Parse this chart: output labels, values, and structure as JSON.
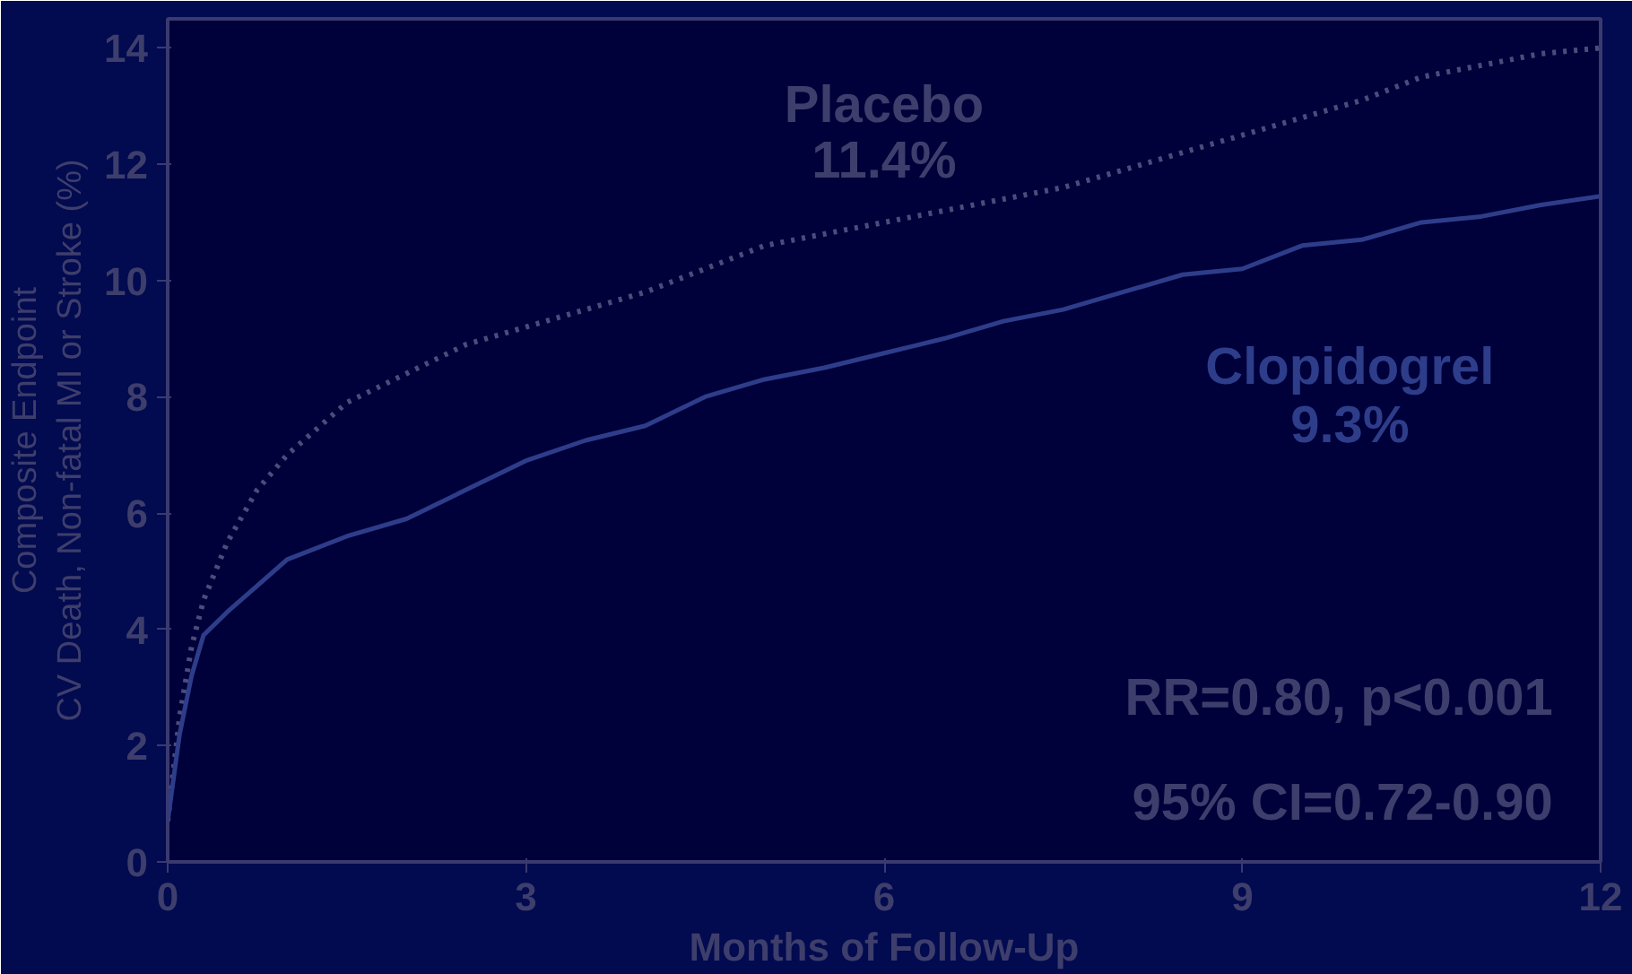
{
  "chart_data": {
    "type": "line",
    "xlabel": "Months of Follow-Up",
    "ylabel": "Composite Endpoint\nCV Death, Non-fatal MI or Stroke (%)",
    "xlim": [
      0,
      12
    ],
    "xticks": [
      0,
      3,
      6,
      9,
      12
    ],
    "ylim": [
      0,
      14.5
    ],
    "yticks": [
      0,
      2,
      4,
      6,
      8,
      10,
      12,
      14
    ],
    "grid": false,
    "annotations": [
      "11.4%",
      "9.3%",
      "RR=0.80, p<0.001",
      "95% CI=0.72-0.90"
    ],
    "x": [
      0,
      0.1,
      0.2,
      0.3,
      0.5,
      0.75,
      1,
      1.5,
      2,
      2.5,
      3,
      3.5,
      4,
      4.5,
      5,
      5.5,
      6,
      6.5,
      7,
      7.5,
      8,
      8.5,
      9,
      9.5,
      10,
      10.5,
      11,
      11.5,
      12
    ],
    "series": [
      {
        "name": "Placebo",
        "color": "#4c4c7c",
        "line_style": "dotted",
        "values": [
          0.7,
          2.5,
          3.7,
          4.5,
          5.5,
          6.4,
          7.0,
          7.9,
          8.4,
          8.9,
          9.2,
          9.5,
          9.8,
          10.2,
          10.6,
          10.8,
          11.0,
          11.2,
          11.4,
          11.6,
          11.9,
          12.2,
          12.5,
          12.8,
          13.1,
          13.5,
          13.7,
          13.9,
          14.0
        ]
      },
      {
        "name": "Clopidogrel",
        "color": "#2e3d8a",
        "line_style": "solid",
        "values": [
          0.7,
          2.2,
          3.2,
          3.9,
          4.3,
          4.75,
          5.2,
          5.6,
          5.9,
          6.4,
          6.9,
          7.25,
          7.5,
          8.0,
          8.3,
          8.5,
          8.75,
          9.0,
          9.3,
          9.5,
          9.8,
          10.1,
          10.2,
          10.6,
          10.7,
          11.0,
          11.1,
          11.3,
          11.45
        ]
      }
    ]
  }
}
